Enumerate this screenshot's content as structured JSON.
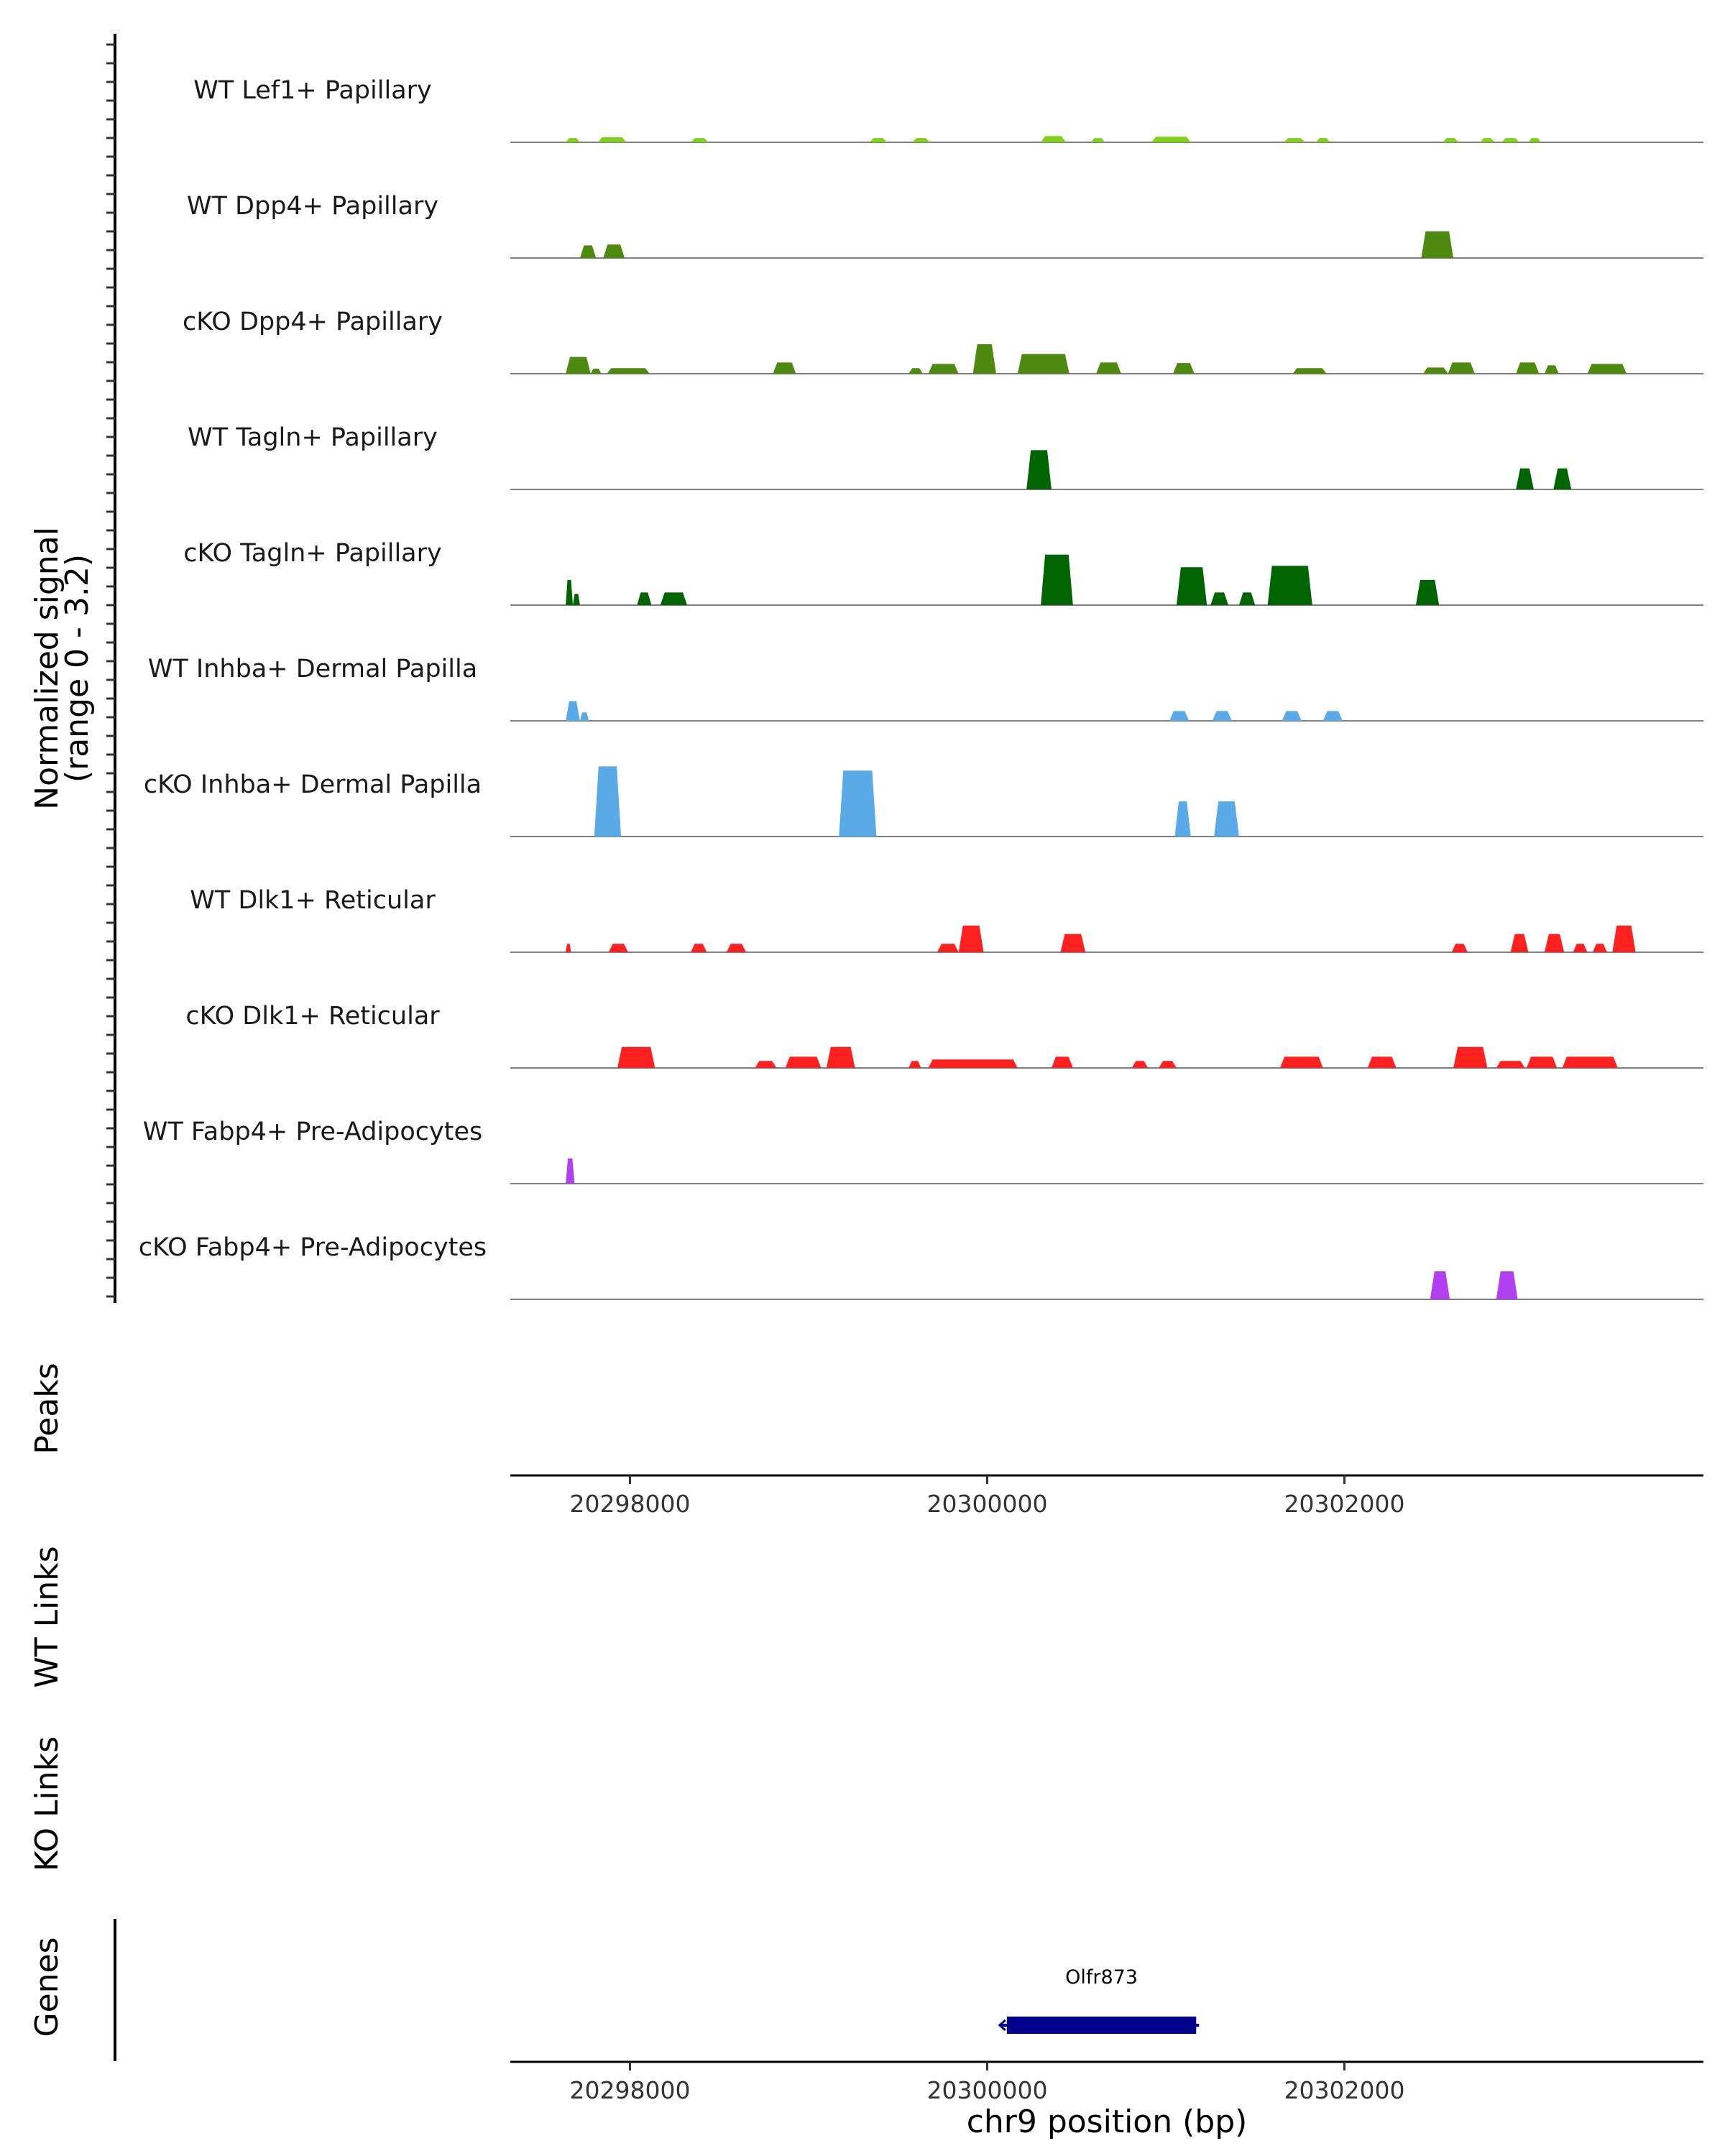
{
  "chart_data": {
    "type": "area",
    "title": "",
    "xlabel": "chr9 position (bp)",
    "ylabel": "Normalized signal",
    "ylabel_range": "(range 0 - 3.2)",
    "xlim": [
      20297330,
      20304010
    ],
    "ylim": [
      0,
      3.2
    ],
    "x_ticks": [
      20298000,
      20300000,
      20302000
    ],
    "x_tick_labels": [
      "20298000",
      "20300000",
      "20302000"
    ],
    "tracks": [
      {
        "name": "WT Lef1+ Papillary",
        "color": "#7FD11A",
        "peaks": [
          [
            20297640,
            20297720,
            0.15
          ],
          [
            20297820,
            20297980,
            0.18
          ],
          [
            20298340,
            20298440,
            0.15
          ],
          [
            20299340,
            20299440,
            0.15
          ],
          [
            20299580,
            20299680,
            0.15
          ],
          [
            20300300,
            20300440,
            0.22
          ],
          [
            20300580,
            20300660,
            0.15
          ],
          [
            20300920,
            20301140,
            0.2
          ],
          [
            20301660,
            20301780,
            0.15
          ],
          [
            20301840,
            20301920,
            0.15
          ],
          [
            20302550,
            20302640,
            0.15
          ],
          [
            20302760,
            20302840,
            0.15
          ],
          [
            20302880,
            20302980,
            0.15
          ],
          [
            20303030,
            20303100,
            0.15
          ]
        ]
      },
      {
        "name": "WT Dpp4+ Papillary",
        "color": "#4F8A10",
        "peaks": [
          [
            20297720,
            20297810,
            0.45
          ],
          [
            20297850,
            20297970,
            0.48
          ],
          [
            20302430,
            20302610,
            0.95
          ]
        ]
      },
      {
        "name": "cKO Dpp4+ Papillary",
        "color": "#4F8A10",
        "peaks": [
          [
            20297640,
            20297780,
            0.6
          ],
          [
            20297780,
            20297840,
            0.18
          ],
          [
            20297870,
            20298110,
            0.2
          ],
          [
            20298800,
            20298930,
            0.4
          ],
          [
            20299560,
            20299640,
            0.2
          ],
          [
            20299670,
            20299840,
            0.35
          ],
          [
            20299920,
            20300050,
            1.05
          ],
          [
            20300170,
            20300460,
            0.7
          ],
          [
            20300610,
            20300750,
            0.4
          ],
          [
            20301040,
            20301160,
            0.38
          ],
          [
            20301710,
            20301900,
            0.2
          ],
          [
            20302440,
            20302580,
            0.22
          ],
          [
            20302580,
            20302730,
            0.4
          ],
          [
            20302960,
            20303090,
            0.4
          ],
          [
            20303120,
            20303200,
            0.3
          ],
          [
            20303360,
            20303580,
            0.35
          ]
        ]
      },
      {
        "name": "WT Tagln+ Papillary",
        "color": "#006400",
        "peaks": [
          [
            20300220,
            20300360,
            1.4
          ],
          [
            20302960,
            20303060,
            0.75
          ],
          [
            20303170,
            20303270,
            0.75
          ]
        ]
      },
      {
        "name": "cKO Tagln+ Papillary",
        "color": "#006400",
        "peaks": [
          [
            20297640,
            20297680,
            0.9
          ],
          [
            20297680,
            20297720,
            0.4
          ],
          [
            20298040,
            20298120,
            0.45
          ],
          [
            20298170,
            20298320,
            0.45
          ],
          [
            20300300,
            20300480,
            1.8
          ],
          [
            20301060,
            20301230,
            1.35
          ],
          [
            20301250,
            20301350,
            0.45
          ],
          [
            20301410,
            20301500,
            0.45
          ],
          [
            20301570,
            20301820,
            1.4
          ],
          [
            20302400,
            20302530,
            0.9
          ]
        ]
      },
      {
        "name": "WT Inhba+ Dermal Papilla",
        "color": "#5AAAE8",
        "peaks": [
          [
            20297640,
            20297720,
            0.7
          ],
          [
            20297720,
            20297770,
            0.3
          ],
          [
            20301020,
            20301130,
            0.35
          ],
          [
            20301260,
            20301370,
            0.35
          ],
          [
            20301650,
            20301760,
            0.35
          ],
          [
            20301880,
            20301990,
            0.35
          ]
        ]
      },
      {
        "name": "cKO Inhba+ Dermal Papilla",
        "color": "#5AAAE8",
        "peaks": [
          [
            20297800,
            20297950,
            2.5
          ],
          [
            20299170,
            20299380,
            2.35
          ],
          [
            20301050,
            20301140,
            1.25
          ],
          [
            20301270,
            20301410,
            1.25
          ]
        ]
      },
      {
        "name": "WT Dlk1+ Reticular",
        "color": "#FF2020",
        "peaks": [
          [
            20297640,
            20297670,
            0.3
          ],
          [
            20297880,
            20297990,
            0.3
          ],
          [
            20298340,
            20298430,
            0.3
          ],
          [
            20298540,
            20298650,
            0.3
          ],
          [
            20299720,
            20299840,
            0.3
          ],
          [
            20299840,
            20299980,
            0.95
          ],
          [
            20300410,
            20300550,
            0.65
          ],
          [
            20302600,
            20302690,
            0.3
          ],
          [
            20302930,
            20303030,
            0.65
          ],
          [
            20303120,
            20303230,
            0.65
          ],
          [
            20303280,
            20303360,
            0.3
          ],
          [
            20303390,
            20303470,
            0.3
          ],
          [
            20303500,
            20303630,
            0.95
          ]
        ]
      },
      {
        "name": "cKO Dlk1+ Reticular",
        "color": "#FF2020",
        "peaks": [
          [
            20297930,
            20298140,
            0.75
          ],
          [
            20298700,
            20298820,
            0.25
          ],
          [
            20298870,
            20299070,
            0.4
          ],
          [
            20299100,
            20299260,
            0.75
          ],
          [
            20299560,
            20299630,
            0.25
          ],
          [
            20299670,
            20300170,
            0.3
          ],
          [
            20300360,
            20300480,
            0.4
          ],
          [
            20300810,
            20300900,
            0.25
          ],
          [
            20300960,
            20301060,
            0.25
          ],
          [
            20301640,
            20301880,
            0.4
          ],
          [
            20302130,
            20302290,
            0.4
          ],
          [
            20302610,
            20302800,
            0.75
          ],
          [
            20302850,
            20303010,
            0.25
          ],
          [
            20303020,
            20303190,
            0.4
          ],
          [
            20303220,
            20303530,
            0.4
          ]
        ]
      },
      {
        "name": "WT Fabp4+ Pre-Adipocytes",
        "color": "#B040F0",
        "peaks": [
          [
            20297640,
            20297690,
            0.9
          ]
        ]
      },
      {
        "name": "cKO Fabp4+ Pre-Adipocytes",
        "color": "#B040F0",
        "peaks": [
          [
            20302480,
            20302590,
            1.0
          ],
          [
            20302850,
            20302970,
            1.0
          ]
        ]
      }
    ],
    "section_labels": {
      "peaks": "Peaks",
      "wt_links": "WT Links",
      "ko_links": "KO Links",
      "genes": "Genes"
    },
    "genes": [
      {
        "name": "Olfr873",
        "start": 20300110,
        "end": 20301170,
        "strand": "-",
        "color": "#00008B"
      }
    ]
  }
}
